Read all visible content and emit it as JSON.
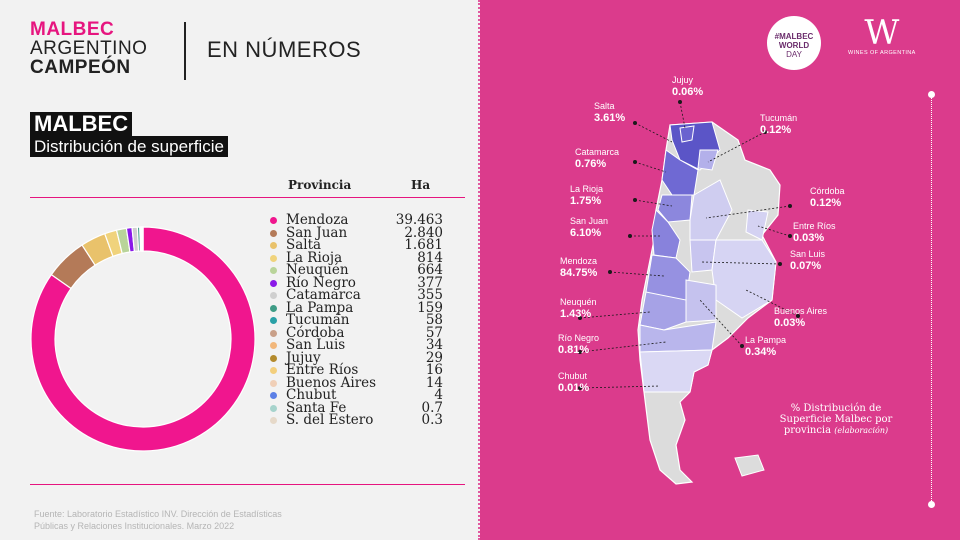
{
  "header": {
    "brand_line1": "MALBEC",
    "brand_line2": "ARGENTINO",
    "brand_line3": "CAMPEÓN",
    "section": "EN NÚMEROS"
  },
  "title": {
    "main": "MALBEC",
    "sub": "Distribución de superficie"
  },
  "table": {
    "col_province": "Provincia",
    "col_ha": "Ha"
  },
  "chart_data": {
    "type": "pie",
    "style": "donut",
    "categories": [
      "Mendoza",
      "San Juan",
      "Salta",
      "La Rioja",
      "Neuquén",
      "Río Negro",
      "Catamarca",
      "La Pampa",
      "Tucumán",
      "Córdoba",
      "San Luis",
      "Jujuy",
      "Entre Ríos",
      "Buenos Aires",
      "Chubut",
      "Santa Fe",
      "S. del Estero"
    ],
    "values": [
      39463,
      2840,
      1681,
      814,
      664,
      377,
      355,
      159,
      58,
      57,
      34,
      29,
      16,
      14,
      4,
      0.7,
      0.3
    ],
    "value_labels": [
      "39.463",
      "2.840",
      "1.681",
      "814",
      "664",
      "377",
      "355",
      "159",
      "58",
      "57",
      "34",
      "29",
      "16",
      "14",
      "4",
      "0.7",
      "0.3"
    ],
    "colors": [
      "#f0168e",
      "#b47a58",
      "#e9c26b",
      "#f0d37c",
      "#b9d49a",
      "#8a19e8",
      "#cfcfcf",
      "#3f9c86",
      "#2aa1a7",
      "#c9a089",
      "#f2b77b",
      "#b38a2c",
      "#f3cf7d",
      "#f0cfb7",
      "#5b7fe6",
      "#a6d3cc",
      "#e6d9c9"
    ],
    "legend_position": "right"
  },
  "map": {
    "labels": [
      {
        "name": "Jujuy",
        "pct": "0.06%"
      },
      {
        "name": "Salta",
        "pct": "3.61%"
      },
      {
        "name": "Tucumán",
        "pct": "0.12%"
      },
      {
        "name": "Catamarca",
        "pct": "0.76%"
      },
      {
        "name": "La Rioja",
        "pct": "1.75%"
      },
      {
        "name": "Córdoba",
        "pct": "0.12%"
      },
      {
        "name": "San Juan",
        "pct": "6.10%"
      },
      {
        "name": "Entre Ríos",
        "pct": "0.03%"
      },
      {
        "name": "San Luis",
        "pct": "0.07%"
      },
      {
        "name": "Mendoza",
        "pct": "84.75%"
      },
      {
        "name": "Neuquén",
        "pct": "1.43%"
      },
      {
        "name": "Buenos Aires",
        "pct": "0.03%"
      },
      {
        "name": "Río Negro",
        "pct": "0.81%"
      },
      {
        "name": "La Pampa",
        "pct": "0.34%"
      },
      {
        "name": "Chubut",
        "pct": "0.01%"
      }
    ],
    "note_line1": "% Distribución de",
    "note_line2": "Superficie Malbec por",
    "note_line3": "provincia",
    "note_italic": "(elaboración)"
  },
  "logos": {
    "malbec_world_day": [
      "#MALBEC",
      "WORLD",
      "DAY"
    ],
    "wines_of_argentina": "WINES OF ARGENTINA",
    "wines_of_argentina_mark": "W"
  },
  "source": {
    "line1": "Fuente: Laboratorio Estadístico INV. Dirección de Estadísticas",
    "line2": "Públicas y Relaciones Institucionales. Marzo 2022"
  },
  "colors": {
    "accent": "#e6157f",
    "right_bg": "#db3b8c"
  }
}
